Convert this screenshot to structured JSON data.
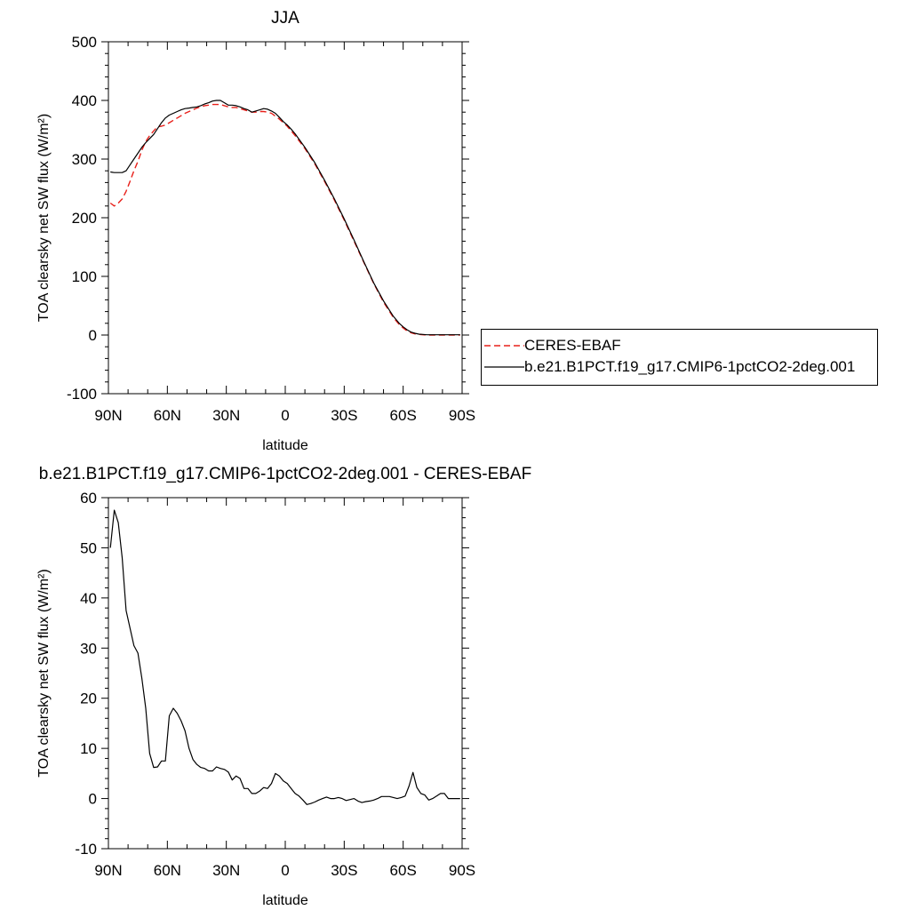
{
  "figure_title": "JJA",
  "colors": {
    "obs": "#e8201a",
    "model": "#000000"
  },
  "legend": {
    "items": [
      {
        "label": "CERES-EBAF",
        "color": "#e8201a",
        "dash": true
      },
      {
        "label": "b.e21.B1PCT.f19_g17.CMIP6-1pctCO2-2deg.001",
        "color": "#000000",
        "dash": false
      }
    ]
  },
  "chart_data": [
    {
      "type": "line",
      "title": "JJA",
      "xlabel": "latitude",
      "ylabel": "TOA clearsky net SW flux (W/m²)",
      "xlim": [
        90,
        -90
      ],
      "ylim": [
        -100,
        500
      ],
      "x_ticks": [
        {
          "value": 90,
          "label": "90N"
        },
        {
          "value": 60,
          "label": "60N"
        },
        {
          "value": 30,
          "label": "30N"
        },
        {
          "value": 0,
          "label": "0"
        },
        {
          "value": -30,
          "label": "30S"
        },
        {
          "value": -60,
          "label": "60S"
        },
        {
          "value": -90,
          "label": "90S"
        }
      ],
      "y_ticks": [
        -100,
        0,
        100,
        200,
        300,
        400,
        500
      ],
      "grid": false,
      "series": [
        {
          "name": "CERES-EBAF",
          "style": "dashed",
          "color": "#e8201a",
          "x": [
            89,
            87,
            85,
            83,
            81,
            79,
            77,
            75,
            73,
            71,
            69,
            67,
            65,
            63,
            61,
            59,
            57,
            55,
            53,
            51,
            49,
            47,
            45,
            43,
            41,
            39,
            37,
            35,
            33,
            31,
            29,
            27,
            25,
            23,
            21,
            19,
            17,
            15,
            13,
            11,
            9,
            7,
            5,
            3,
            1,
            -1,
            -3,
            -5,
            -10,
            -15,
            -20,
            -25,
            -30,
            -35,
            -40,
            -45,
            -50,
            -55,
            -58,
            -60,
            -62,
            -64,
            -66,
            -68,
            -70,
            -72,
            -75,
            -80,
            -85,
            -89
          ],
          "y": [
            225,
            220,
            225,
            232,
            245,
            262,
            280,
            296,
            315,
            330,
            340,
            348,
            355,
            356,
            358,
            362,
            366,
            370,
            374,
            378,
            381,
            384,
            387,
            389,
            391,
            392,
            393,
            393,
            393,
            391,
            389,
            388,
            388,
            386,
            384,
            382,
            380,
            380,
            381,
            381,
            380,
            378,
            373,
            368,
            362,
            356,
            348,
            340,
            318,
            292,
            262,
            230,
            196,
            160,
            124,
            88,
            56,
            30,
            18,
            12,
            7,
            4,
            2,
            1,
            0.5,
            0,
            0,
            0,
            0,
            0
          ]
        },
        {
          "name": "b.e21.B1PCT.f19_g17.CMIP6-1pctCO2-2deg.001",
          "style": "solid",
          "color": "#000000",
          "x": [
            89,
            87,
            85,
            83,
            81,
            79,
            77,
            75,
            73,
            71,
            69,
            67,
            65,
            63,
            61,
            59,
            57,
            55,
            53,
            51,
            49,
            47,
            45,
            43,
            41,
            39,
            37,
            35,
            33,
            31,
            29,
            27,
            25,
            23,
            21,
            19,
            17,
            15,
            13,
            11,
            9,
            7,
            5,
            3,
            1,
            -1,
            -3,
            -5,
            -10,
            -15,
            -20,
            -25,
            -30,
            -35,
            -40,
            -45,
            -50,
            -55,
            -58,
            -60,
            -62,
            -64,
            -66,
            -68,
            -70,
            -72,
            -75,
            -80,
            -85,
            -89
          ],
          "y": [
            278,
            277,
            277,
            277,
            280,
            290,
            300,
            310,
            320,
            328,
            335,
            342,
            352,
            362,
            370,
            375,
            378,
            381,
            384,
            386,
            387,
            388,
            389,
            391,
            394,
            396,
            399,
            400,
            400,
            396,
            392,
            392,
            391,
            389,
            386,
            384,
            380,
            382,
            384,
            386,
            385,
            382,
            378,
            371,
            364,
            358,
            351,
            343,
            320,
            294,
            264,
            232,
            198,
            162,
            125,
            89,
            58,
            32,
            20,
            14,
            9,
            5,
            3,
            1.5,
            1,
            0.5,
            0.5,
            0.5,
            0.5,
            0.5
          ]
        }
      ]
    },
    {
      "type": "line",
      "title": "b.e21.B1PCT.f19_g17.CMIP6-1pctCO2-2deg.001 - CERES-EBAF",
      "xlabel": "latitude",
      "ylabel": "TOA clearsky net SW flux (W/m²)",
      "xlim": [
        90,
        -90
      ],
      "ylim": [
        -10,
        60
      ],
      "x_ticks": [
        {
          "value": 90,
          "label": "90N"
        },
        {
          "value": 60,
          "label": "60N"
        },
        {
          "value": 30,
          "label": "30N"
        },
        {
          "value": 0,
          "label": "0"
        },
        {
          "value": -30,
          "label": "30S"
        },
        {
          "value": -60,
          "label": "60S"
        },
        {
          "value": -90,
          "label": "90S"
        }
      ],
      "y_ticks": [
        -10,
        0,
        10,
        20,
        30,
        40,
        50,
        60
      ],
      "grid": false,
      "series": [
        {
          "style": "solid",
          "color": "#000000",
          "x": [
            89,
            87,
            85,
            83,
            81,
            79,
            77,
            75,
            73,
            71,
            69,
            67,
            65,
            63,
            61,
            59,
            57,
            55,
            53,
            51,
            49,
            47,
            45,
            43,
            41,
            39,
            37,
            35,
            33,
            31,
            29,
            27,
            25,
            23,
            21,
            19,
            17,
            15,
            13,
            11,
            9,
            7,
            5,
            3,
            1,
            -1,
            -3,
            -5,
            -7,
            -9,
            -11,
            -13,
            -15,
            -17,
            -19,
            -21,
            -23,
            -25,
            -27,
            -29,
            -31,
            -33,
            -35,
            -37,
            -39,
            -41,
            -43,
            -45,
            -47,
            -49,
            -51,
            -53,
            -55,
            -57,
            -59,
            -61,
            -63,
            -65,
            -67,
            -69,
            -71,
            -73,
            -75,
            -77,
            -79,
            -81,
            -83,
            -85,
            -87,
            -89
          ],
          "y": [
            50,
            57.5,
            55,
            48,
            37.5,
            34,
            30.5,
            29,
            24,
            18,
            9,
            6.2,
            6.3,
            7.5,
            7.5,
            16.5,
            18,
            17,
            15.5,
            13.5,
            10,
            7.8,
            6.8,
            6.2,
            6,
            5.5,
            5.5,
            6.3,
            6,
            5.8,
            5.3,
            3.7,
            4.5,
            4,
            2,
            2,
            1,
            1,
            1.5,
            2.2,
            2,
            3,
            5,
            4.5,
            3.5,
            3,
            2,
            1,
            0.5,
            -0.3,
            -1.2,
            -1,
            -0.7,
            -0.3,
            0,
            0.3,
            0,
            0,
            0.2,
            0,
            -0.4,
            -0.2,
            0,
            -0.5,
            -0.8,
            -0.6,
            -0.5,
            -0.3,
            0,
            0.4,
            0.4,
            0.4,
            0.2,
            0,
            0.2,
            0.5,
            2.5,
            5.2,
            2.2,
            1,
            0.7,
            -0.3,
            0,
            0.5,
            1,
            1,
            0,
            0,
            0,
            0
          ]
        }
      ]
    }
  ]
}
